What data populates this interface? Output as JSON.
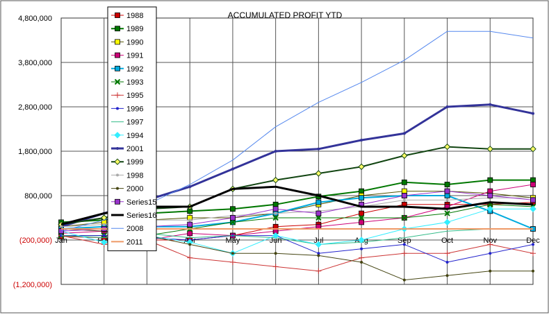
{
  "chart_data": {
    "type": "line",
    "title": "ACCUMULATED PROFIT YTD",
    "xlabel": "",
    "ylabel": "",
    "categories": [
      "Jan",
      "Feb",
      "Mar",
      "Apr",
      "May",
      "Jun",
      "Jul",
      "Aug",
      "Sep",
      "Oct",
      "Nov",
      "Dec"
    ],
    "ylim": [
      -1200000,
      4800000
    ],
    "yticks": [
      {
        "value": 4800000,
        "label": "4,800,000",
        "color": "#000000"
      },
      {
        "value": 3800000,
        "label": "3,800,000",
        "color": "#000000"
      },
      {
        "value": 2800000,
        "label": "2,800,000",
        "color": "#000000"
      },
      {
        "value": 1800000,
        "label": "1,800,000",
        "color": "#000000"
      },
      {
        "value": 800000,
        "label": "800,000",
        "color": "#000000"
      },
      {
        "value": -200000,
        "label": "(200,000)",
        "color": "#cc0000"
      },
      {
        "value": -1200000,
        "label": "(1,200,000)",
        "color": "#cc0000"
      }
    ],
    "grid": true,
    "legend_position": "left, inside plot",
    "series": [
      {
        "name": "1988",
        "color": "#cc0000",
        "marker": "square",
        "width": 1,
        "values": [
          -120000,
          -150000,
          -200000,
          -200000,
          -100000,
          100000,
          150000,
          400000,
          600000,
          600000,
          600000,
          650000
        ]
      },
      {
        "name": "1989",
        "color": "#007700",
        "marker": "square",
        "width": 2,
        "values": [
          200000,
          250000,
          400000,
          450000,
          500000,
          600000,
          780000,
          900000,
          1100000,
          1050000,
          1150000,
          1150000
        ]
      },
      {
        "name": "1990",
        "color": "#555500",
        "marker": "square",
        "fill": "#ffff00",
        "width": 1,
        "values": [
          100000,
          200000,
          250000,
          300000,
          300000,
          400000,
          600000,
          800000,
          900000,
          900000,
          850000,
          750000
        ]
      },
      {
        "name": "1991",
        "color": "#cc0077",
        "marker": "square",
        "width": 1,
        "values": [
          -50000,
          0,
          -200000,
          -50000,
          -100000,
          0,
          100000,
          200000,
          300000,
          550000,
          900000,
          1050000
        ]
      },
      {
        "name": "1992",
        "color": "#00aadd",
        "marker": "square",
        "width": 2,
        "values": [
          50000,
          100000,
          100000,
          100000,
          200000,
          400000,
          650000,
          750000,
          800000,
          800000,
          450000,
          50000
        ]
      },
      {
        "name": "1993",
        "color": "#007700",
        "marker": "x",
        "width": 1,
        "values": [
          -100000,
          -100000,
          -100000,
          50000,
          200000,
          300000,
          300000,
          300000,
          300000,
          400000,
          600000,
          550000
        ]
      },
      {
        "name": "1995",
        "color": "#cc3333",
        "marker": "plus",
        "width": 1,
        "values": [
          -100000,
          -300000,
          -200000,
          -600000,
          -700000,
          -800000,
          -900000,
          -600000,
          -500000,
          -500000,
          -300000,
          -500000
        ]
      },
      {
        "name": "1996",
        "color": "#2222cc",
        "marker": "dot",
        "width": 1,
        "values": [
          -100000,
          -100000,
          -150000,
          -200000,
          -100000,
          -100000,
          -500000,
          -400000,
          -300000,
          -700000,
          -500000,
          -300000
        ]
      },
      {
        "name": "1997",
        "color": "#33bb88",
        "marker": "none",
        "width": 1,
        "values": [
          -100000,
          -150000,
          -50000,
          -150000,
          -100000,
          -150000,
          -300000,
          -250000,
          -150000,
          0,
          50000,
          50000
        ]
      },
      {
        "name": "1994",
        "color": "#33eeff",
        "marker": "diamond",
        "width": 1,
        "values": [
          0,
          -250000,
          -100000,
          -250000,
          -500000,
          -100000,
          -300000,
          -200000,
          50000,
          200000,
          500000,
          500000
        ]
      },
      {
        "name": "2001",
        "color": "#333399",
        "marker": "dot",
        "width": 3,
        "values": [
          100000,
          400000,
          700000,
          1000000,
          1400000,
          1800000,
          1850000,
          2050000,
          2200000,
          2800000,
          2850000,
          2650000
        ]
      },
      {
        "name": "1999",
        "color": "#114411",
        "marker": "diamond",
        "width": 2,
        "values": [
          150000,
          300000,
          500000,
          550000,
          950000,
          1150000,
          1300000,
          1450000,
          1700000,
          1900000,
          1850000,
          1850000
        ]
      },
      {
        "name": "1998",
        "color": "#aaaaaa",
        "marker": "dot",
        "width": 1,
        "values": [
          100000,
          150000,
          250000,
          250000,
          350000,
          400000,
          450000,
          550000,
          700000,
          700000,
          750000,
          750000
        ]
      },
      {
        "name": "2000",
        "color": "#444411",
        "marker": "dot",
        "width": 1,
        "values": [
          50000,
          0,
          -100000,
          -300000,
          -500000,
          -500000,
          -550000,
          -700000,
          -1100000,
          -1000000,
          -900000,
          -900000
        ]
      },
      {
        "name": "Series15",
        "color": "#9933cc",
        "marker": "square",
        "width": 1,
        "values": [
          0,
          50000,
          100000,
          150000,
          300000,
          500000,
          400000,
          600000,
          800000,
          900000,
          800000,
          700000
        ]
      },
      {
        "name": "Series16",
        "color": "#000000",
        "marker": "none",
        "width": 3,
        "values": [
          150000,
          400000,
          550000,
          550000,
          950000,
          1000000,
          800000,
          550000,
          550000,
          500000,
          650000,
          600000
        ]
      },
      {
        "name": "2008",
        "color": "#5588ee",
        "marker": "none",
        "width": 1,
        "values": [
          0,
          250000,
          600000,
          1050000,
          1600000,
          2350000,
          2900000,
          3350000,
          3850000,
          4500000,
          4500000,
          4350000
        ]
      },
      {
        "name": "2011",
        "color": "#ee9966",
        "marker": "none",
        "width": 2,
        "values": [
          50000,
          50000,
          50000,
          50000,
          50000,
          50000,
          50000,
          50000,
          50000,
          50000,
          50000,
          50000
        ]
      }
    ]
  }
}
